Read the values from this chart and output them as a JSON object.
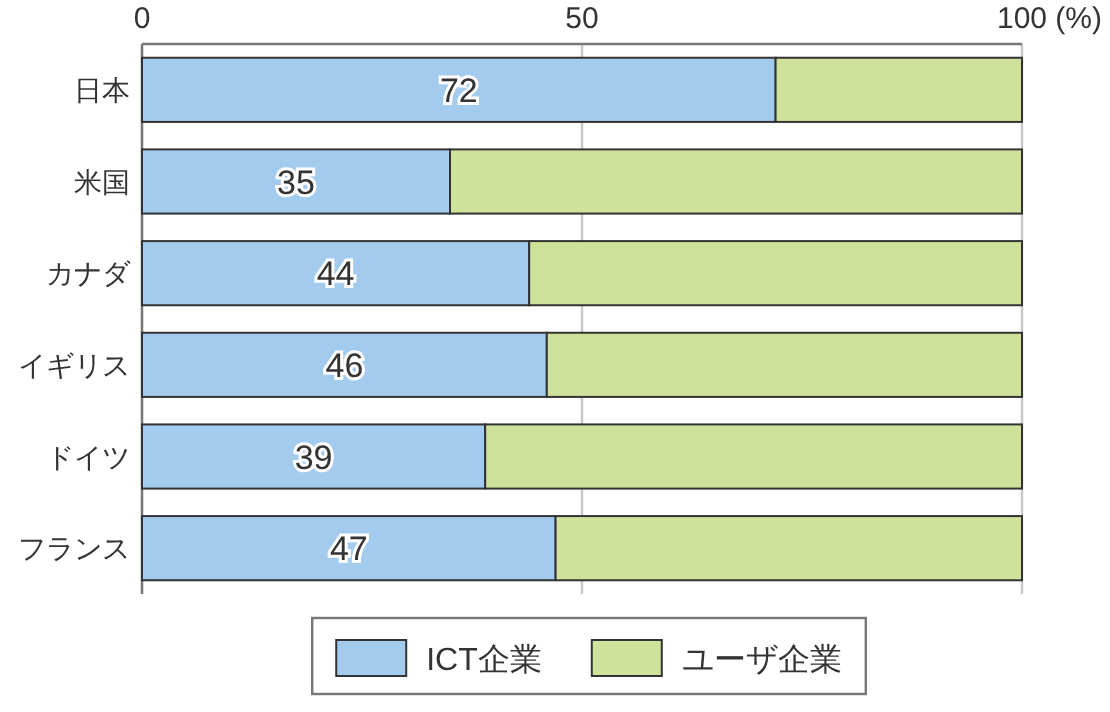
{
  "chart_data": {
    "type": "bar",
    "orientation": "horizontal",
    "stacked": true,
    "categories": [
      "日本",
      "米国",
      "カナダ",
      "イギリス",
      "ドイツ",
      "フランス"
    ],
    "series": [
      {
        "name": "ICT企業",
        "color": "#a3cbee",
        "values": [
          72,
          35,
          44,
          46,
          39,
          47
        ],
        "value_labels": [
          "72",
          "35",
          "44",
          "46",
          "39",
          "47"
        ]
      },
      {
        "name": "ユーザ企業",
        "color": "#cfe29c",
        "values": [
          28,
          65,
          56,
          54,
          61,
          53
        ]
      }
    ],
    "xlim": [
      0,
      100
    ],
    "xticks": [
      0,
      50,
      {
        "value": 100,
        "label": "100 (%)"
      }
    ],
    "grid": "x",
    "legend": "bottom"
  }
}
